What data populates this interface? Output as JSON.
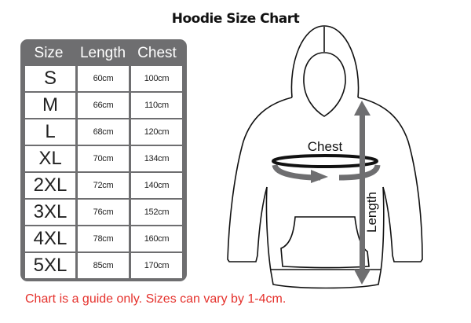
{
  "title": "Hoodie Size Chart",
  "table": {
    "headers": [
      "Size",
      "Length",
      "Chest"
    ],
    "rows": [
      [
        "S",
        "60cm",
        "100cm"
      ],
      [
        "M",
        "66cm",
        "110cm"
      ],
      [
        "L",
        "68cm",
        "120cm"
      ],
      [
        "XL",
        "70cm",
        "134cm"
      ],
      [
        "2XL",
        "72cm",
        "140cm"
      ],
      [
        "3XL",
        "76cm",
        "152cm"
      ],
      [
        "4XL",
        "78cm",
        "160cm"
      ],
      [
        "5XL",
        "85cm",
        "170cm"
      ]
    ]
  },
  "diagram": {
    "chest_label": "Chest",
    "length_label": "Length",
    "arrow_color": "#6e6e70"
  },
  "note": "Chart is a guide only. Sizes can vary by 1-4cm.",
  "colors": {
    "table_bg": "#6e6e70",
    "note": "#e5322d"
  }
}
